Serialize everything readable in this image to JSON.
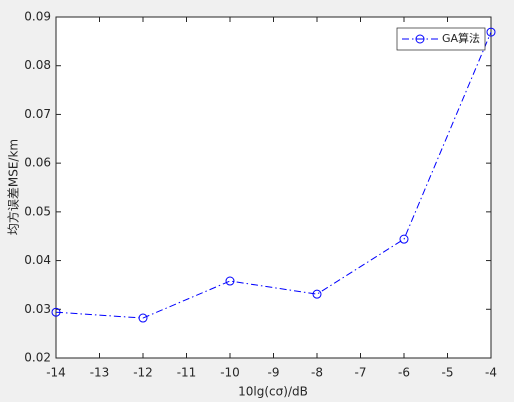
{
  "chart_data": {
    "type": "line",
    "xlabel": "10lg(cσ)/dB",
    "ylabel": "均方误差MSE/km",
    "x": [
      -14,
      -12,
      -10,
      -8,
      -6,
      -4
    ],
    "series": [
      {
        "name": "GA算法",
        "color": "#0000ff",
        "values": [
          0.0294,
          0.0282,
          0.0358,
          0.0331,
          0.0444,
          0.0869
        ]
      }
    ],
    "xlim": [
      -14,
      -4
    ],
    "xticks": [
      -14,
      -13,
      -12,
      -11,
      -10,
      -9,
      -8,
      -7,
      -6,
      -5,
      -4
    ],
    "ylim": [
      0.02,
      0.09
    ],
    "yticks": [
      0.02,
      0.03,
      0.04,
      0.05,
      0.06,
      0.07,
      0.08,
      0.09
    ],
    "legend": "upper right",
    "grid": false
  }
}
